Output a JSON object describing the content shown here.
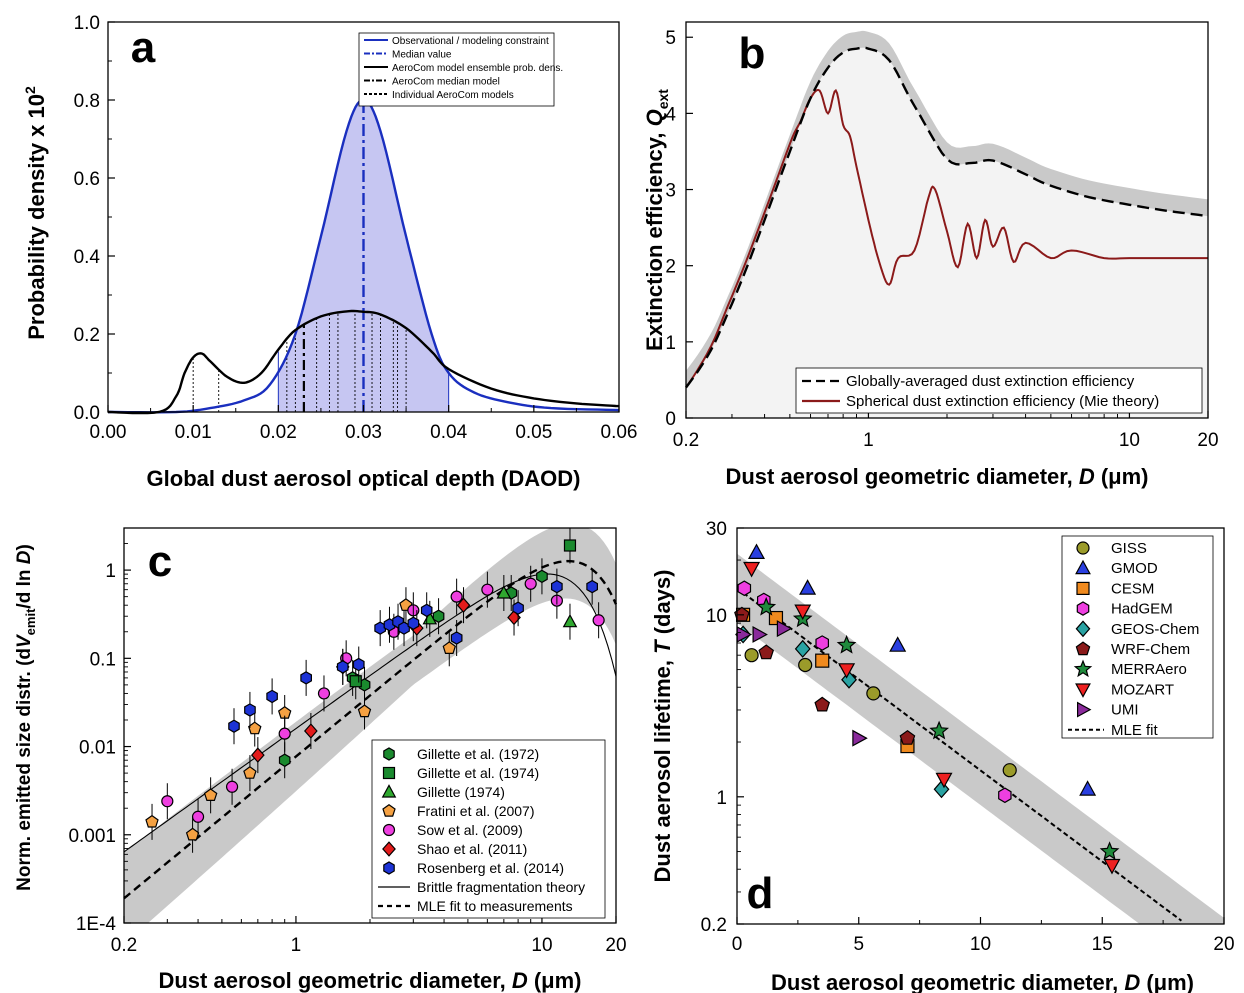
{
  "chart_data": [
    {
      "panel": "a",
      "type": "line",
      "xlabel": "Global dust aerosol optical depth (DAOD)",
      "ylabel": "Probability density x 10",
      "ylabel_sup": "2",
      "xlim": [
        0.0,
        0.06
      ],
      "ylim": [
        0.0,
        1.0
      ],
      "xticks": [
        "0.00",
        "0.01",
        "0.02",
        "0.03",
        "0.04",
        "0.05",
        "0.06"
      ],
      "yticks": [
        "0.0",
        "0.2",
        "0.4",
        "0.6",
        "0.8",
        "1.0"
      ],
      "legend": [
        {
          "label": "Observational / modeling constraint",
          "style": "solid",
          "color": "#1a2fbf"
        },
        {
          "label": "Median value",
          "style": "dashdot",
          "color": "#1a2fbf"
        },
        {
          "label": "AeroCom model ensemble prob. dens.",
          "style": "solid",
          "color": "#000000"
        },
        {
          "label": "AeroCom median model",
          "style": "dashdot",
          "color": "#000000"
        },
        {
          "label": "Individual AeroCom models",
          "style": "dashed",
          "color": "#000000"
        }
      ],
      "series": [
        {
          "x": [
            0.0,
            0.008,
            0.012,
            0.016,
            0.019,
            0.022,
            0.025,
            0.028,
            0.03,
            0.032,
            0.035,
            0.038,
            0.04,
            0.043,
            0.047,
            0.052,
            0.06
          ],
          "y": [
            0.0,
            0.0,
            0.01,
            0.03,
            0.07,
            0.2,
            0.45,
            0.72,
            0.8,
            0.72,
            0.45,
            0.2,
            0.1,
            0.05,
            0.025,
            0.01,
            0.005
          ]
        },
        {
          "x": [
            0.0,
            0.006,
            0.008,
            0.009,
            0.01,
            0.011,
            0.012,
            0.014,
            0.016,
            0.018,
            0.02,
            0.022,
            0.025,
            0.028,
            0.03,
            0.032,
            0.035,
            0.038,
            0.04,
            0.045,
            0.05,
            0.055,
            0.06
          ],
          "y": [
            0.0,
            0.0,
            0.04,
            0.1,
            0.14,
            0.15,
            0.13,
            0.09,
            0.075,
            0.1,
            0.16,
            0.21,
            0.245,
            0.258,
            0.257,
            0.25,
            0.215,
            0.155,
            0.11,
            0.06,
            0.035,
            0.022,
            0.015
          ]
        }
      ],
      "median_constraint": 0.03,
      "median_model": 0.023,
      "individual_models": [
        0.01,
        0.013,
        0.021,
        0.022,
        0.0245,
        0.026,
        0.027,
        0.029,
        0.031,
        0.032,
        0.0335,
        0.034,
        0.035
      ]
    },
    {
      "panel": "b",
      "type": "line",
      "xlabel": "Dust aerosol geometric diameter,",
      "xlabel_var": "D",
      "xlabel_unit": "(μm)",
      "ylabel": "Extinction efficiency,",
      "ylabel_var": "Q",
      "ylabel_sub": "ext",
      "xscale": "log",
      "xlim": [
        0.2,
        20
      ],
      "ylim": [
        0,
        5.2
      ],
      "xticks": [
        "0.2",
        "1",
        "10",
        "20"
      ],
      "yticks": [
        "0",
        "1",
        "2",
        "3",
        "4",
        "5"
      ],
      "legend": [
        {
          "label": "Globally-averaged dust extinction efficiency",
          "style": "dashed",
          "color": "#000000"
        },
        {
          "label": "Spherical dust extinction efficiency (Mie theory)",
          "style": "solid",
          "color": "#8b1a1a"
        }
      ],
      "series": [
        {
          "x": [
            0.2,
            0.25,
            0.3,
            0.4,
            0.5,
            0.6,
            0.7,
            0.8,
            0.9,
            1.0,
            1.2,
            1.5,
            2.0,
            2.5,
            3.0,
            4.0,
            5.0,
            7.0,
            10,
            14,
            20
          ],
          "y": [
            0.4,
            0.9,
            1.5,
            2.6,
            3.5,
            4.2,
            4.6,
            4.8,
            4.85,
            4.85,
            4.7,
            4.1,
            3.4,
            3.35,
            3.38,
            3.2,
            3.05,
            2.9,
            2.8,
            2.72,
            2.65
          ]
        },
        {
          "x": [
            0.2,
            0.25,
            0.3,
            0.4,
            0.5,
            0.55,
            0.6,
            0.65,
            0.7,
            0.75,
            0.8,
            0.85,
            0.9,
            1.0,
            1.1,
            1.2,
            1.3,
            1.5,
            1.7,
            1.8,
            2.0,
            2.2,
            2.4,
            2.6,
            2.8,
            3.0,
            3.3,
            3.6,
            4,
            5,
            6,
            8,
            10,
            14,
            20
          ],
          "y": [
            0.4,
            0.95,
            1.6,
            2.7,
            3.6,
            3.9,
            4.2,
            4.3,
            4.0,
            4.3,
            3.85,
            3.7,
            3.3,
            2.6,
            2.05,
            1.75,
            2.1,
            2.2,
            2.9,
            3.0,
            2.45,
            1.98,
            2.55,
            2.1,
            2.6,
            2.25,
            2.5,
            2.05,
            2.3,
            2.1,
            2.2,
            2.1,
            2.1,
            2.1,
            2.1
          ]
        }
      ]
    },
    {
      "panel": "c",
      "type": "scatter",
      "xlabel": "Dust aerosol geometric diameter,",
      "xlabel_var": "D",
      "xlabel_unit": "(μm)",
      "ylabel_pre": "Norm. emitted size distr. (d",
      "ylabel_var": "V",
      "ylabel_sub": "emit",
      "ylabel_mid": "/d ln",
      "ylabel_var2": "D",
      "ylabel_post": ")",
      "xscale": "log",
      "yscale": "log",
      "xlim": [
        0.2,
        20
      ],
      "ylim": [
        0.0001,
        3
      ],
      "xticks": [
        "0.2",
        "1",
        "10",
        "20"
      ],
      "yticks": [
        "1E-4",
        "0.001",
        "0.01",
        "0.1",
        "1"
      ],
      "legend": [
        {
          "label": "Gillette et al. (1972)",
          "marker": "hexagon",
          "color": "#1a8a2e"
        },
        {
          "label": "Gillette et al. (1974)",
          "marker": "square",
          "color": "#1a8a2e"
        },
        {
          "label": "Gillette (1974)",
          "marker": "triangle",
          "color": "#2fa82f"
        },
        {
          "label": "Fratini et al. (2007)",
          "marker": "pentagon",
          "color": "#f5a142"
        },
        {
          "label": "Sow et al. (2009)",
          "marker": "circle",
          "color": "#ee3fe0"
        },
        {
          "label": "Shao et al. (2011)",
          "marker": "diamond",
          "color": "#e21b1b"
        },
        {
          "label": "Rosenberg et al. (2014)",
          "marker": "hexagon",
          "color": "#1d33d6"
        },
        {
          "label": "Brittle fragmentation theory",
          "style": "solid",
          "color": "#000000"
        },
        {
          "label": "MLE fit to measurements",
          "style": "dashed",
          "color": "#000000"
        }
      ],
      "points": [
        {
          "s": 0,
          "x": 0.9,
          "y": 0.007
        },
        {
          "s": 0,
          "x": 1.7,
          "y": 0.06
        },
        {
          "s": 0,
          "x": 1.9,
          "y": 0.05
        },
        {
          "s": 0,
          "x": 3.8,
          "y": 0.3
        },
        {
          "s": 0,
          "x": 7.5,
          "y": 0.55
        },
        {
          "s": 0,
          "x": 10,
          "y": 0.85
        },
        {
          "s": 1,
          "x": 1.75,
          "y": 0.055
        },
        {
          "s": 1,
          "x": 13,
          "y": 1.9
        },
        {
          "s": 2,
          "x": 3.5,
          "y": 0.28
        },
        {
          "s": 2,
          "x": 7,
          "y": 0.55
        },
        {
          "s": 2,
          "x": 13,
          "y": 0.26
        },
        {
          "s": 3,
          "x": 0.26,
          "y": 0.0014
        },
        {
          "s": 3,
          "x": 0.38,
          "y": 0.001
        },
        {
          "s": 3,
          "x": 0.45,
          "y": 0.0028
        },
        {
          "s": 3,
          "x": 0.65,
          "y": 0.005
        },
        {
          "s": 3,
          "x": 0.68,
          "y": 0.016
        },
        {
          "s": 3,
          "x": 0.9,
          "y": 0.024
        },
        {
          "s": 3,
          "x": 1.9,
          "y": 0.025
        },
        {
          "s": 3,
          "x": 2.8,
          "y": 0.4
        },
        {
          "s": 3,
          "x": 4.2,
          "y": 0.13
        },
        {
          "s": 4,
          "x": 0.3,
          "y": 0.0024
        },
        {
          "s": 4,
          "x": 0.4,
          "y": 0.0016
        },
        {
          "s": 4,
          "x": 0.55,
          "y": 0.0035
        },
        {
          "s": 4,
          "x": 0.9,
          "y": 0.014
        },
        {
          "s": 4,
          "x": 1.3,
          "y": 0.04
        },
        {
          "s": 4,
          "x": 1.6,
          "y": 0.1
        },
        {
          "s": 4,
          "x": 2.5,
          "y": 0.2
        },
        {
          "s": 4,
          "x": 3,
          "y": 0.35
        },
        {
          "s": 4,
          "x": 4.5,
          "y": 0.5
        },
        {
          "s": 4,
          "x": 6,
          "y": 0.6
        },
        {
          "s": 4,
          "x": 9,
          "y": 0.7
        },
        {
          "s": 4,
          "x": 11.5,
          "y": 0.45
        },
        {
          "s": 4,
          "x": 17,
          "y": 0.27
        },
        {
          "s": 5,
          "x": 0.7,
          "y": 0.008
        },
        {
          "s": 5,
          "x": 1.15,
          "y": 0.015
        },
        {
          "s": 5,
          "x": 1.55,
          "y": 0.08
        },
        {
          "s": 5,
          "x": 3.1,
          "y": 0.22
        },
        {
          "s": 5,
          "x": 4.8,
          "y": 0.4
        },
        {
          "s": 5,
          "x": 7.7,
          "y": 0.29
        },
        {
          "s": 6,
          "x": 0.56,
          "y": 0.017
        },
        {
          "s": 6,
          "x": 0.65,
          "y": 0.026
        },
        {
          "s": 6,
          "x": 0.8,
          "y": 0.037
        },
        {
          "s": 6,
          "x": 1.1,
          "y": 0.06
        },
        {
          "s": 6,
          "x": 1.55,
          "y": 0.08
        },
        {
          "s": 6,
          "x": 1.8,
          "y": 0.085
        },
        {
          "s": 6,
          "x": 2.2,
          "y": 0.22
        },
        {
          "s": 6,
          "x": 2.4,
          "y": 0.24
        },
        {
          "s": 6,
          "x": 2.6,
          "y": 0.26
        },
        {
          "s": 6,
          "x": 2.75,
          "y": 0.22
        },
        {
          "s": 6,
          "x": 3,
          "y": 0.25
        },
        {
          "s": 6,
          "x": 3.4,
          "y": 0.35
        },
        {
          "s": 6,
          "x": 4.5,
          "y": 0.17
        },
        {
          "s": 6,
          "x": 8,
          "y": 0.37
        },
        {
          "s": 6,
          "x": 11.5,
          "y": 0.65
        },
        {
          "s": 6,
          "x": 16,
          "y": 0.65
        }
      ]
    },
    {
      "panel": "d",
      "type": "scatter",
      "xlabel": "Dust aerosol geometric diameter,",
      "xlabel_var": "D",
      "xlabel_unit": "(μm)",
      "ylabel": "Dust aerosol lifetime,",
      "ylabel_var": "T",
      "ylabel_unit": "(days)",
      "yscale": "log",
      "xlim": [
        0,
        20
      ],
      "ylim": [
        0.2,
        30
      ],
      "xticks": [
        "0",
        "5",
        "10",
        "15",
        "20"
      ],
      "yticks": [
        "0.2",
        "1",
        "10",
        "30"
      ],
      "legend": [
        {
          "label": "GISS",
          "marker": "circle",
          "color": "#9b9b2a"
        },
        {
          "label": "GMOD",
          "marker": "triangle",
          "color": "#2a3fe0"
        },
        {
          "label": "CESM",
          "marker": "square",
          "color": "#f08a1e"
        },
        {
          "label": "HadGEM",
          "marker": "hexagon",
          "color": "#ee3fe0"
        },
        {
          "label": "GEOS-Chem",
          "marker": "diamond",
          "color": "#2aa3a3"
        },
        {
          "label": "WRF-Chem",
          "marker": "pentagon",
          "color": "#8b1a1a"
        },
        {
          "label": "MERRAero",
          "marker": "star",
          "color": "#1f8a3c"
        },
        {
          "label": "MOZART",
          "marker": "triangle-down",
          "color": "#ee2020"
        },
        {
          "label": "UMI",
          "marker": "triangle-right",
          "color": "#8a2a9b"
        },
        {
          "label": "MLE fit",
          "style": "dotted",
          "color": "#000000"
        }
      ],
      "points": [
        {
          "s": 0,
          "x": 0.6,
          "y": 6
        },
        {
          "s": 0,
          "x": 2.8,
          "y": 5.3
        },
        {
          "s": 0,
          "x": 5.6,
          "y": 3.7
        },
        {
          "s": 0,
          "x": 11.2,
          "y": 1.4
        },
        {
          "s": 1,
          "x": 0.8,
          "y": 22
        },
        {
          "s": 1,
          "x": 2.9,
          "y": 14
        },
        {
          "s": 1,
          "x": 6.6,
          "y": 6.8
        },
        {
          "s": 1,
          "x": 14.4,
          "y": 1.1
        },
        {
          "s": 2,
          "x": 0.25,
          "y": 10
        },
        {
          "s": 2,
          "x": 1.6,
          "y": 9.6
        },
        {
          "s": 2,
          "x": 3.5,
          "y": 5.6
        },
        {
          "s": 2,
          "x": 7,
          "y": 1.9
        },
        {
          "s": 3,
          "x": 0.3,
          "y": 14
        },
        {
          "s": 3,
          "x": 1.1,
          "y": 12
        },
        {
          "s": 3,
          "x": 3.5,
          "y": 7
        },
        {
          "s": 3,
          "x": 11,
          "y": 1.02
        },
        {
          "s": 4,
          "x": 0.25,
          "y": 7.8
        },
        {
          "s": 4,
          "x": 2.7,
          "y": 6.5
        },
        {
          "s": 4,
          "x": 4.6,
          "y": 4.4
        },
        {
          "s": 4,
          "x": 8.4,
          "y": 1.1
        },
        {
          "s": 5,
          "x": 0.2,
          "y": 10
        },
        {
          "s": 5,
          "x": 1.2,
          "y": 6.2
        },
        {
          "s": 5,
          "x": 3.5,
          "y": 3.2
        },
        {
          "s": 5,
          "x": 7,
          "y": 2.1
        },
        {
          "s": 6,
          "x": 1.2,
          "y": 11
        },
        {
          "s": 6,
          "x": 2.7,
          "y": 9.5
        },
        {
          "s": 6,
          "x": 4.5,
          "y": 6.8
        },
        {
          "s": 6,
          "x": 8.3,
          "y": 2.3
        },
        {
          "s": 6,
          "x": 15.3,
          "y": 0.5
        },
        {
          "s": 7,
          "x": 0.6,
          "y": 18
        },
        {
          "s": 7,
          "x": 2.7,
          "y": 10.5
        },
        {
          "s": 7,
          "x": 4.5,
          "y": 5
        },
        {
          "s": 7,
          "x": 8.5,
          "y": 1.25
        },
        {
          "s": 7,
          "x": 15.4,
          "y": 0.42
        },
        {
          "s": 8,
          "x": 0.25,
          "y": 7.8
        },
        {
          "s": 8,
          "x": 0.9,
          "y": 7.8
        },
        {
          "s": 8,
          "x": 1.9,
          "y": 8.4
        },
        {
          "s": 8,
          "x": 5,
          "y": 2.1
        }
      ]
    }
  ]
}
